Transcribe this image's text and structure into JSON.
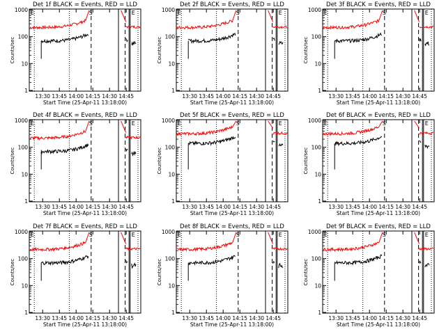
{
  "chart_data": {
    "type": "line",
    "layout": "3x3 grid",
    "yscale": "log",
    "ylim": [
      1,
      1000
    ],
    "ylabel": "Counts/sec",
    "xlabel": "Start Time (25-Apr-11 13:18:00)",
    "x_ticklabels": [
      "13:30",
      "13:45",
      "14:00",
      "14:15",
      "14:30",
      "14:45"
    ],
    "y_ticklabels": [
      "1",
      "10",
      "100",
      "1000"
    ],
    "series_colors": {
      "events": "#000000",
      "lld": "#ff0000"
    },
    "markers": {
      "saa_label": "S",
      "eclipse_label": "E"
    },
    "panels": [
      {
        "title": "Det 1f BLACK = Events, RED = LLD"
      },
      {
        "title": "Det 2f BLACK = Events, RED = LLD"
      },
      {
        "title": "Det 3f BLACK = Events, RED = LLD"
      },
      {
        "title": "Det 4f BLACK = Events, RED = LLD"
      },
      {
        "title": "Det 5f BLACK = Events, RED = LLD"
      },
      {
        "title": "Det 6f BLACK = Events, RED = LLD"
      },
      {
        "title": "Det 7f BLACK = Events, RED = LLD"
      },
      {
        "title": "Det 8f BLACK = Events, RED = LLD"
      },
      {
        "title": "Det 9f BLACK = Events, RED = LLD"
      }
    ]
  }
}
